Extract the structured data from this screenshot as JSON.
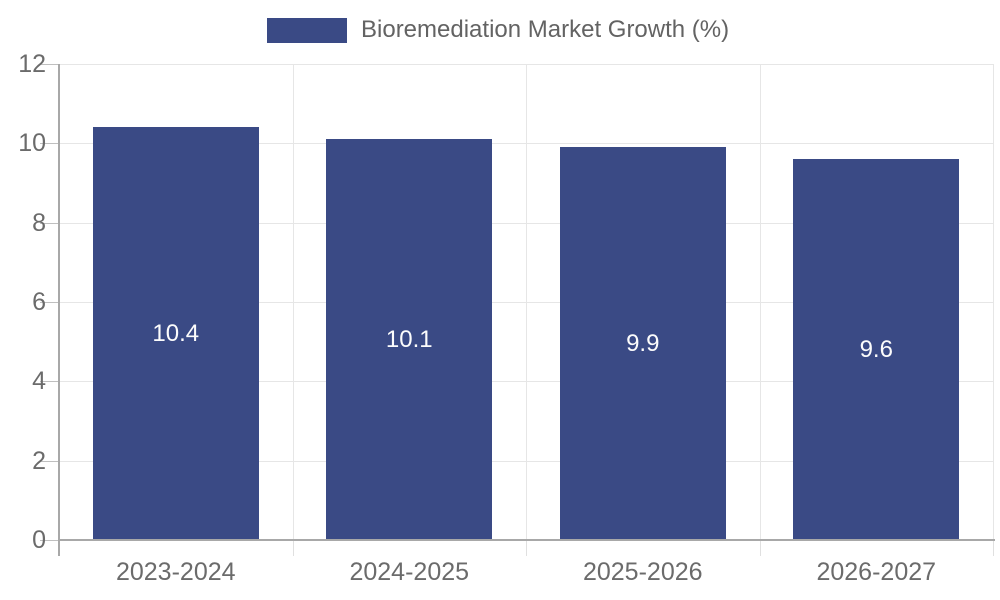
{
  "chart_data": {
    "type": "bar",
    "title": "",
    "legend_label": "Bioremediation Market Growth (%)",
    "legend_position": "top-center",
    "categories": [
      "2023-2024",
      "2024-2025",
      "2025-2026",
      "2026-2027"
    ],
    "values": [
      10.4,
      10.1,
      9.9,
      9.6
    ],
    "value_labels": [
      "10.4",
      "10.1",
      "9.9",
      "9.6"
    ],
    "xlabel": "",
    "ylabel": "",
    "ylim": [
      0,
      12
    ],
    "yticks": [
      0,
      2,
      4,
      6,
      8,
      10,
      12
    ],
    "grid": true,
    "colors": {
      "bar": "#3a4a85",
      "bar_value_text": "#fcfcfc",
      "axis_line": "#a8a8a8",
      "gridline": "#e6e6e6",
      "tick_text": "#6b6b6b",
      "legend_text": "#636363",
      "background": "#ffffff"
    }
  }
}
